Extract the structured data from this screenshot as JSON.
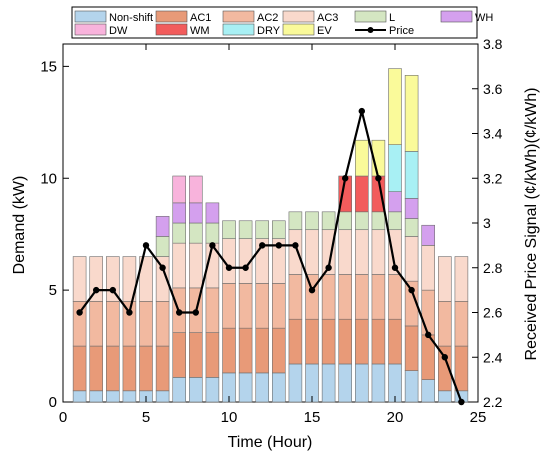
{
  "chart_data": {
    "type": "bar",
    "subtype": "stacked-bar-with-line",
    "xlabel": "Time (Hour)",
    "ylabel_left": "Demand (kW)",
    "ylabel_right": "Received Price Signal (¢/kWh)(¢/kWh)",
    "x_lim": [
      0,
      25
    ],
    "x_ticks": [
      "0",
      "5",
      "10",
      "15",
      "20",
      "25"
    ],
    "y_left_lim": [
      0,
      16
    ],
    "y_left_ticks": [
      "0",
      "5",
      "10",
      "15"
    ],
    "y_right_lim": [
      2.2,
      3.8
    ],
    "y_right_ticks": [
      "2.2",
      "2.4",
      "2.6",
      "2.8",
      "3",
      "3.2",
      "3.4",
      "3.6",
      "3.8"
    ],
    "grid": false,
    "legend_position": "top",
    "hours": [
      1,
      2,
      3,
      4,
      5,
      6,
      7,
      8,
      9,
      10,
      11,
      12,
      13,
      14,
      15,
      16,
      17,
      18,
      19,
      20,
      21,
      22,
      23,
      24
    ],
    "series": [
      {
        "name": "Non-shift",
        "color": "#b4d4ec",
        "values": [
          0.5,
          0.5,
          0.5,
          0.5,
          0.5,
          0.5,
          1.1,
          1.1,
          1.1,
          1.3,
          1.3,
          1.3,
          1.3,
          1.7,
          1.7,
          1.7,
          1.7,
          1.7,
          1.7,
          1.7,
          1.4,
          1.0,
          0.5,
          0.5
        ]
      },
      {
        "name": "AC1",
        "color": "#e89a78",
        "values": [
          2.0,
          2.0,
          2.0,
          2.0,
          2.0,
          2.0,
          2.0,
          2.0,
          2.0,
          2.0,
          2.0,
          2.0,
          2.0,
          2.0,
          2.0,
          2.0,
          2.0,
          2.0,
          2.0,
          2.0,
          2.0,
          2.0,
          2.0,
          2.0
        ]
      },
      {
        "name": "AC2",
        "color": "#f2b9a0",
        "values": [
          2.0,
          2.0,
          2.0,
          2.0,
          2.0,
          2.0,
          2.0,
          2.0,
          2.0,
          2.0,
          2.0,
          2.0,
          2.0,
          2.0,
          2.0,
          2.0,
          2.0,
          2.0,
          2.0,
          2.0,
          2.0,
          2.0,
          2.0,
          2.0
        ]
      },
      {
        "name": "AC3",
        "color": "#f9d9cc",
        "values": [
          2.0,
          2.0,
          2.0,
          2.0,
          2.0,
          2.0,
          2.0,
          2.0,
          2.0,
          2.0,
          2.0,
          2.0,
          2.0,
          2.0,
          2.0,
          2.0,
          2.0,
          2.0,
          2.0,
          2.0,
          2.0,
          2.0,
          2.0,
          2.0
        ]
      },
      {
        "name": "L",
        "color": "#d4e6c2",
        "values": [
          0,
          0,
          0,
          0,
          0,
          0.9,
          0.9,
          0.9,
          0.9,
          0.8,
          0.8,
          0.8,
          0.8,
          0.8,
          0.8,
          0.8,
          0.8,
          0.8,
          0.8,
          0.8,
          0.8,
          0,
          0,
          0
        ]
      },
      {
        "name": "WH",
        "color": "#d4a0ee",
        "values": [
          0,
          0,
          0,
          0,
          0,
          0.9,
          0.9,
          0.9,
          0.9,
          0,
          0,
          0,
          0,
          0,
          0,
          0,
          0,
          0,
          0,
          0.9,
          0.9,
          0.9,
          0,
          0
        ]
      },
      {
        "name": "DW",
        "color": "#f8b3dc",
        "values": [
          0,
          0,
          0,
          0,
          0,
          0,
          1.2,
          1.2,
          0,
          0,
          0,
          0,
          0,
          0,
          0,
          0,
          0,
          0,
          0,
          0,
          0,
          0,
          0,
          0
        ]
      },
      {
        "name": "WM",
        "color": "#f25c5c",
        "values": [
          0,
          0,
          0,
          0,
          0,
          0,
          0,
          0,
          0,
          0,
          0,
          0,
          0,
          0,
          0,
          0,
          1.6,
          1.6,
          1.6,
          0,
          0,
          0,
          0,
          0
        ]
      },
      {
        "name": "DRY",
        "color": "#a8f0f4",
        "values": [
          0,
          0,
          0,
          0,
          0,
          0,
          0,
          0,
          0,
          0,
          0,
          0,
          0,
          0,
          0,
          0,
          0,
          0,
          0,
          2.1,
          2.1,
          0,
          0,
          0
        ]
      },
      {
        "name": "EV",
        "color": "#fafa9a",
        "values": [
          0,
          0,
          0,
          0,
          0,
          0,
          0,
          0,
          0,
          0,
          0,
          0,
          0,
          0,
          0,
          0,
          0,
          1.6,
          1.6,
          3.4,
          3.4,
          0,
          0,
          0
        ]
      }
    ],
    "line_series": {
      "name": "Price",
      "axis": "right",
      "color": "#000000",
      "values": [
        2.6,
        2.7,
        2.7,
        2.6,
        2.9,
        2.8,
        2.6,
        2.6,
        2.9,
        2.8,
        2.8,
        2.9,
        2.9,
        2.9,
        2.7,
        2.8,
        3.2,
        3.5,
        3.2,
        2.8,
        2.7,
        2.5,
        2.4,
        2.2
      ]
    },
    "legend": [
      "Non-shift",
      "AC1",
      "AC2",
      "AC3",
      "L",
      "WH",
      "DW",
      "WM",
      "DRY",
      "EV",
      "Price"
    ]
  }
}
